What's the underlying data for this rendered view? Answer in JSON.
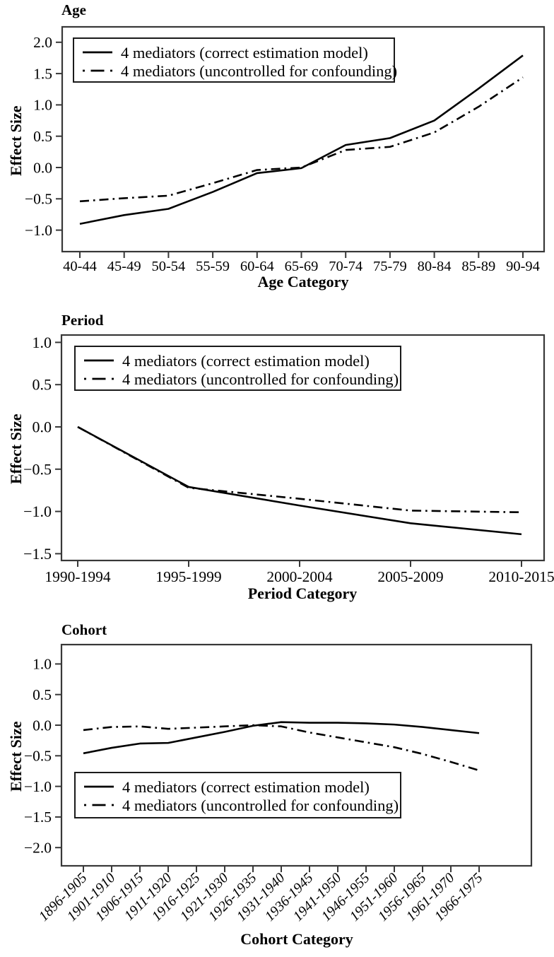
{
  "figure": {
    "shared_y_axis_title": "Effect Size",
    "colors": {
      "line": "#000000",
      "frame": "#383838",
      "background": "#ffffff",
      "text": "#000000"
    },
    "legend_entries": [
      "4 mediators (correct estimation model)",
      "4 mediators (uncontrolled for confounding)"
    ]
  },
  "chart_data": [
    {
      "type": "line",
      "title": "Age",
      "xlabel": "Age Category",
      "ylabel": "Effect Size",
      "legend_position": "top-left",
      "grid": false,
      "ylim": [
        -1.35,
        2.25
      ],
      "yticks": [
        2.0,
        1.5,
        1.0,
        0.5,
        0.0,
        -0.5,
        -1.0
      ],
      "ytick_labels": [
        "2.0",
        "1.5",
        "1.0",
        "0.5",
        "0.0",
        "−0.5",
        "−1.0"
      ],
      "categories": [
        "40-44",
        "45-49",
        "50-54",
        "55-59",
        "60-64",
        "65-69",
        "70-74",
        "75-79",
        "80-84",
        "85-89",
        "90-94"
      ],
      "series": [
        {
          "name": "4 mediators (correct estimation model)",
          "style": "solid",
          "values": [
            -0.9,
            -0.76,
            -0.66,
            -0.39,
            -0.09,
            -0.01,
            0.36,
            0.47,
            0.75,
            1.26,
            1.79
          ]
        },
        {
          "name": "4 mediators (uncontrolled for confounding)",
          "style": "dashdot",
          "values": [
            -0.54,
            -0.49,
            -0.45,
            -0.25,
            -0.04,
            0.0,
            0.28,
            0.33,
            0.56,
            0.97,
            1.44
          ]
        }
      ]
    },
    {
      "type": "line",
      "title": "Period",
      "xlabel": "Period Category",
      "ylabel": "Effect Size",
      "legend_position": "top-left",
      "grid": false,
      "ylim": [
        -1.58,
        1.09
      ],
      "yticks": [
        1.0,
        0.5,
        0.0,
        -0.5,
        -1.0,
        -1.5
      ],
      "ytick_labels": [
        "1.0",
        "0.5",
        "0.0",
        "−0.5",
        "−1.0",
        "−1.5"
      ],
      "categories": [
        "1990-1994",
        "1995-1999",
        "2000-2004",
        "2005-2009",
        "2010-2015"
      ],
      "series": [
        {
          "name": "4 mediators (correct estimation model)",
          "style": "solid",
          "values": [
            0.0,
            -0.71,
            -0.93,
            -1.14,
            -1.27
          ]
        },
        {
          "name": "4 mediators (uncontrolled for confounding)",
          "style": "dashdot",
          "values": [
            0.0,
            -0.72,
            -0.85,
            -0.99,
            -1.01
          ]
        }
      ]
    },
    {
      "type": "line",
      "title": "Cohort",
      "xlabel": "Cohort Category",
      "ylabel": "Effect Size",
      "legend_position": "bottom-left",
      "grid": false,
      "ylim": [
        -2.3,
        1.32
      ],
      "yticks": [
        1.0,
        0.5,
        0.0,
        -0.5,
        -1.0,
        -1.5,
        -2.0
      ],
      "ytick_labels": [
        "1.0",
        "0.5",
        "0.0",
        "−0.5",
        "−1.0",
        "−1.5",
        "−2.0"
      ],
      "categories": [
        "1896-1905",
        "1901-1910",
        "1906-1915",
        "1911-1920",
        "1916-1925",
        "1921-1930",
        "1926-1935",
        "1931-1940",
        "1936-1945",
        "1941-1950",
        "1946-1955",
        "1951-1960",
        "1956-1965",
        "1961-1970",
        "1966-1975"
      ],
      "series": [
        {
          "name": "4 mediators (correct estimation model)",
          "style": "solid",
          "values": [
            -0.46,
            -0.37,
            -0.3,
            -0.29,
            -0.2,
            -0.11,
            -0.01,
            0.05,
            0.04,
            0.04,
            0.03,
            0.01,
            -0.03,
            -0.08,
            -0.13
          ]
        },
        {
          "name": "4 mediators (uncontrolled for confounding)",
          "style": "dashdot",
          "values": [
            -0.08,
            -0.03,
            -0.02,
            -0.06,
            -0.04,
            -0.02,
            0.0,
            -0.02,
            -0.12,
            -0.2,
            -0.28,
            -0.36,
            -0.47,
            -0.6,
            -0.74
          ]
        }
      ]
    }
  ]
}
